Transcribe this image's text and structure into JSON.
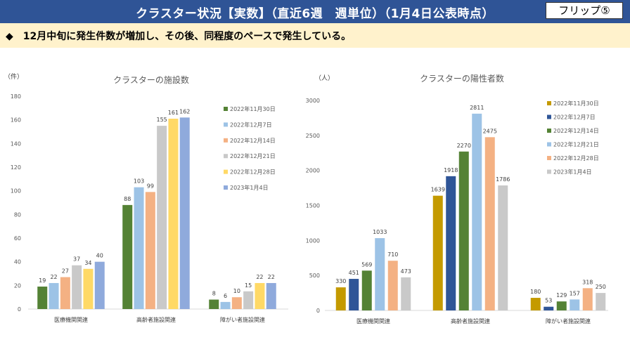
{
  "header": {
    "title": "クラスター状況【実数】（直近6週　週単位）（1月4日公表時点）",
    "flip_label": "フリップ⑤",
    "color": "#2F5496"
  },
  "summary": {
    "text": "◆　12月中旬に発生件数が増加し、その後、同程度のペースで発生している。"
  },
  "chart_data": [
    {
      "type": "bar",
      "title": "クラスターの施設数",
      "ylabel": "（件）",
      "ylim": [
        0,
        180
      ],
      "yticks": [
        0,
        20,
        40,
        60,
        80,
        100,
        120,
        140,
        160,
        180
      ],
      "grid": false,
      "legend": "right",
      "categories": [
        "医療機関関連",
        "高齢者施設関連",
        "障がい者施設関連"
      ],
      "series": [
        {
          "name": "2022年11月30日",
          "color": "#548235",
          "values": [
            19,
            88,
            8
          ]
        },
        {
          "name": "2022年12月7日",
          "color": "#9DC3E6",
          "values": [
            22,
            103,
            6
          ]
        },
        {
          "name": "2022年12月14日",
          "color": "#F4B183",
          "values": [
            27,
            99,
            10
          ]
        },
        {
          "name": "2022年12月21日",
          "color": "#C9C9C9",
          "values": [
            37,
            155,
            15
          ]
        },
        {
          "name": "2022年12月28日",
          "color": "#FFD966",
          "values": [
            34,
            161,
            22
          ]
        },
        {
          "name": "2023年1月4日",
          "color": "#8FAADC",
          "values": [
            40,
            162,
            22
          ]
        }
      ]
    },
    {
      "type": "bar",
      "title": "クラスターの陽性者数",
      "ylabel": "（人）",
      "ylim": [
        0,
        3000
      ],
      "yticks": [
        0,
        500,
        1000,
        1500,
        2000,
        2500,
        3000
      ],
      "grid": false,
      "legend": "right",
      "categories": [
        "医療機関関連",
        "高齢者施設関連",
        "障がい者施設関連"
      ],
      "series": [
        {
          "name": "2022年11月30日",
          "color": "#C49A00",
          "values": [
            330,
            1639,
            180
          ]
        },
        {
          "name": "2022年12月7日",
          "color": "#2F5597",
          "values": [
            451,
            1918,
            53
          ]
        },
        {
          "name": "2022年12月14日",
          "color": "#548235",
          "values": [
            569,
            2270,
            129
          ]
        },
        {
          "name": "2022年12月21日",
          "color": "#9DC3E6",
          "values": [
            1033,
            2811,
            157
          ]
        },
        {
          "name": "2022年12月28日",
          "color": "#F4B183",
          "values": [
            710,
            2475,
            318
          ]
        },
        {
          "name": "2023年1月4日",
          "color": "#C9C9C9",
          "values": [
            473,
            1786,
            250
          ]
        }
      ]
    }
  ]
}
